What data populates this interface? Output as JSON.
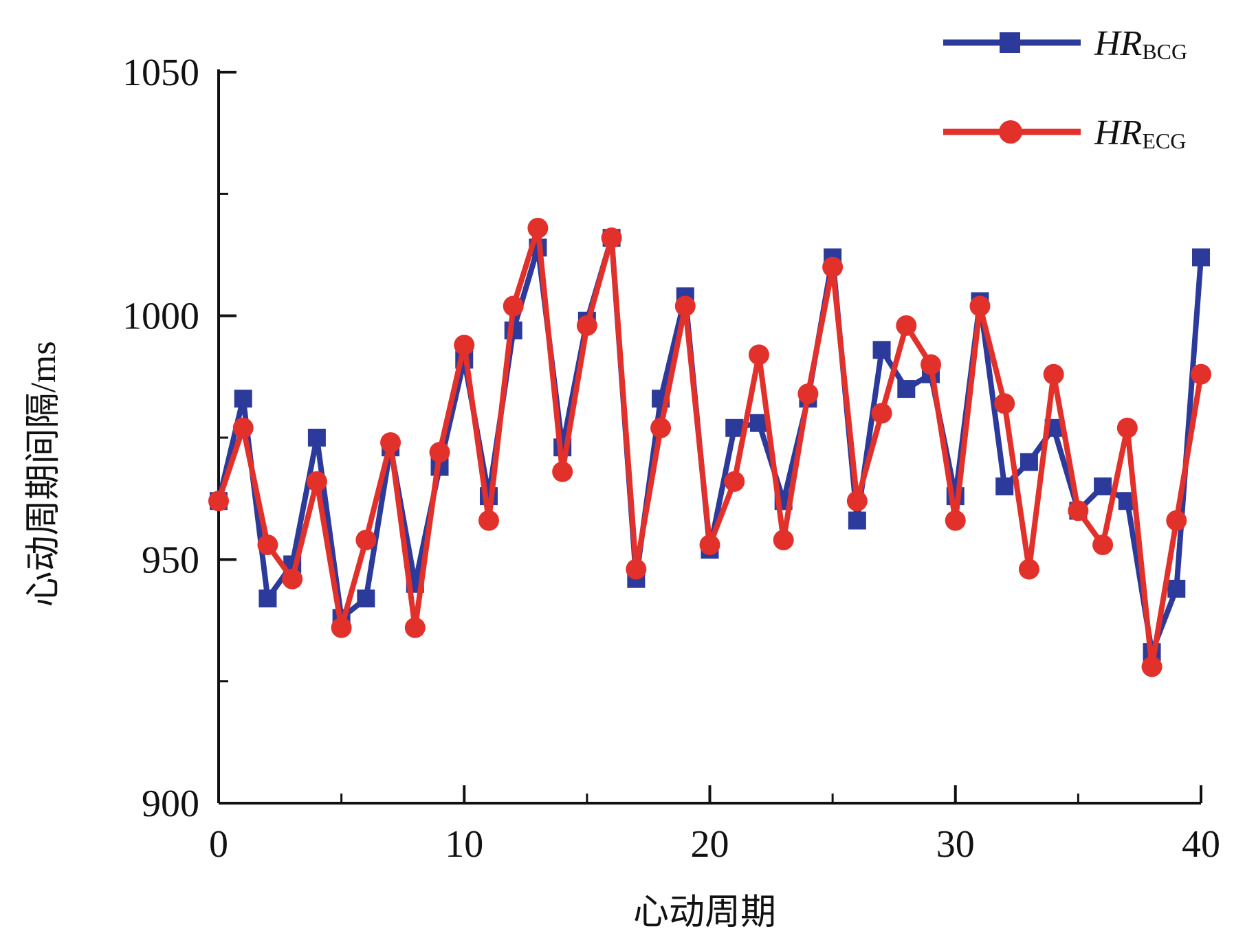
{
  "chart_data": {
    "type": "line",
    "title": "",
    "xlabel": "心动周期",
    "ylabel": "心动周期间隔/ms",
    "xlim": [
      0,
      40
    ],
    "ylim": [
      900,
      1050
    ],
    "xticks": [
      0,
      10,
      20,
      30,
      40
    ],
    "yticks": [
      900,
      950,
      1000,
      1050
    ],
    "x_minor_ticks": [
      5,
      15,
      25,
      35
    ],
    "y_minor_ticks": [
      925,
      975,
      1025
    ],
    "grid": false,
    "legend_position": "top-right",
    "x": [
      0,
      1,
      2,
      3,
      4,
      5,
      6,
      7,
      8,
      9,
      10,
      11,
      12,
      13,
      14,
      15,
      16,
      17,
      18,
      19,
      20,
      21,
      22,
      23,
      24,
      25,
      26,
      27,
      28,
      29,
      30,
      31,
      32,
      33,
      34,
      35,
      36,
      37,
      38,
      39,
      40
    ],
    "series": [
      {
        "legend_main": "HR",
        "legend_sub": "BCG",
        "color": "#2b3a9b",
        "marker": "square",
        "values": [
          962,
          983,
          942,
          949,
          975,
          938,
          942,
          973,
          945,
          969,
          991,
          963,
          997,
          1014,
          973,
          999,
          1016,
          946,
          983,
          1004,
          952,
          977,
          978,
          962,
          983,
          1012,
          958,
          993,
          985,
          988,
          963,
          1003,
          965,
          970,
          977,
          960,
          965,
          962,
          931,
          944,
          1012
        ]
      },
      {
        "legend_main": "HR",
        "legend_sub": "ECG",
        "color": "#e2302b",
        "marker": "circle",
        "values": [
          962,
          977,
          953,
          946,
          966,
          936,
          954,
          974,
          936,
          972,
          994,
          958,
          1002,
          1018,
          968,
          998,
          1016,
          948,
          977,
          1002,
          953,
          966,
          992,
          954,
          984,
          1010,
          962,
          980,
          998,
          990,
          958,
          1002,
          982,
          948,
          988,
          960,
          953,
          977,
          928,
          958,
          988
        ]
      }
    ]
  }
}
